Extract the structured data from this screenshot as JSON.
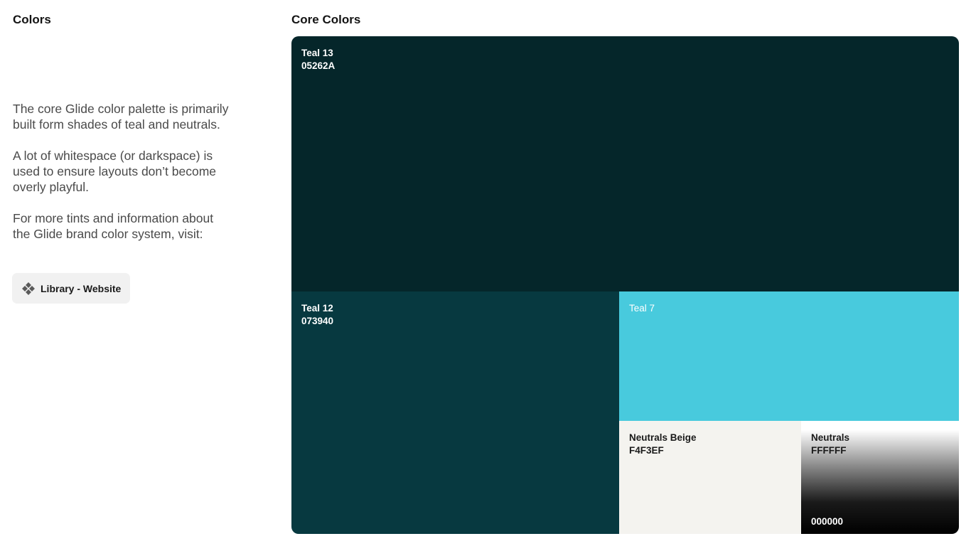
{
  "left": {
    "title": "Colors",
    "paragraphs": [
      "The core Glide color palette is primarily built form shades of teal and neutrals.",
      "A lot of whitespace (or darkspace) is used to ensure layouts don’t become overly playful.",
      "For more tints and information about the Glide brand color system, visit:"
    ],
    "link_button": {
      "label": "Library - Website",
      "icon": "component-diamond-icon"
    }
  },
  "right": {
    "title": "Core Colors",
    "swatches": {
      "teal13": {
        "name": "Teal 13",
        "hex": "05262A",
        "color": "#05262A"
      },
      "teal12": {
        "name": "Teal 12",
        "hex": "073940",
        "color": "#073940"
      },
      "teal7": {
        "name": "Teal 7",
        "color": "#48CADD"
      },
      "beige": {
        "name": "Neutrals Beige",
        "hex": "F4F3EF",
        "color": "#F4F3EF"
      },
      "neutrals": {
        "name": "Neutrals",
        "hex_top": "FFFFFF",
        "hex_bottom": "000000"
      }
    }
  }
}
